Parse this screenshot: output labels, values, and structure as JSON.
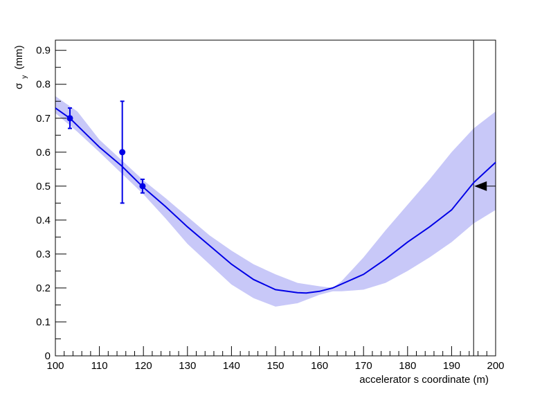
{
  "chart_data": {
    "type": "line",
    "title": "",
    "xlabel": "accelerator s coordinate (m)",
    "ylabel": {
      "symbol": "σ",
      "subscript": "y",
      "unit": "(mm)"
    },
    "xlim": [
      100,
      200
    ],
    "ylim": [
      0,
      0.93
    ],
    "x_ticks": [
      "100",
      "110",
      "120",
      "130",
      "140",
      "150",
      "160",
      "170",
      "180",
      "190",
      "200"
    ],
    "y_ticks": [
      "0",
      "0.1",
      "0.2",
      "0.3",
      "0.4",
      "0.5",
      "0.6",
      "0.7",
      "0.8",
      "0.9"
    ],
    "grid": false,
    "legend": "none",
    "colors": {
      "line": "#0000e6",
      "band": "#c8c8f8",
      "points": "#0000e6",
      "marker": "#000000"
    },
    "series": [
      {
        "kind": "fit-line",
        "x": [
          100,
          103.3,
          110,
          115,
          120,
          125,
          130,
          135,
          140,
          145,
          150,
          155,
          157,
          160,
          163,
          170,
          175,
          180,
          185,
          190,
          195,
          200
        ],
        "y": [
          0.73,
          0.7,
          0.615,
          0.56,
          0.496,
          0.44,
          0.38,
          0.325,
          0.27,
          0.225,
          0.195,
          0.186,
          0.185,
          0.19,
          0.2,
          0.24,
          0.285,
          0.335,
          0.38,
          0.43,
          0.51,
          0.57
        ]
      },
      {
        "kind": "error-band",
        "x": [
          100,
          105,
          110,
          115,
          120,
          125,
          130,
          135,
          140,
          145,
          150,
          155,
          160,
          163,
          165,
          170,
          175,
          180,
          185,
          190,
          195,
          200
        ],
        "lower": [
          0.715,
          0.66,
          0.6,
          0.538,
          0.476,
          0.405,
          0.33,
          0.27,
          0.21,
          0.17,
          0.145,
          0.155,
          0.18,
          0.19,
          0.19,
          0.195,
          0.215,
          0.25,
          0.29,
          0.335,
          0.39,
          0.43
        ],
        "upper": [
          0.765,
          0.72,
          0.637,
          0.577,
          0.517,
          0.465,
          0.41,
          0.355,
          0.31,
          0.27,
          0.24,
          0.215,
          0.205,
          0.2,
          0.22,
          0.29,
          0.37,
          0.445,
          0.52,
          0.6,
          0.67,
          0.72
        ]
      },
      {
        "kind": "measurements",
        "points": [
          {
            "x": 103.3,
            "y": 0.7,
            "err": 0.03
          },
          {
            "x": 115.2,
            "y": 0.6,
            "err": 0.15
          },
          {
            "x": 119.8,
            "y": 0.5,
            "err": 0.02
          }
        ]
      }
    ],
    "annotations": [
      {
        "kind": "vertical-line",
        "x": 195
      },
      {
        "kind": "arrow-pointing-left",
        "y": 0.5
      }
    ]
  }
}
